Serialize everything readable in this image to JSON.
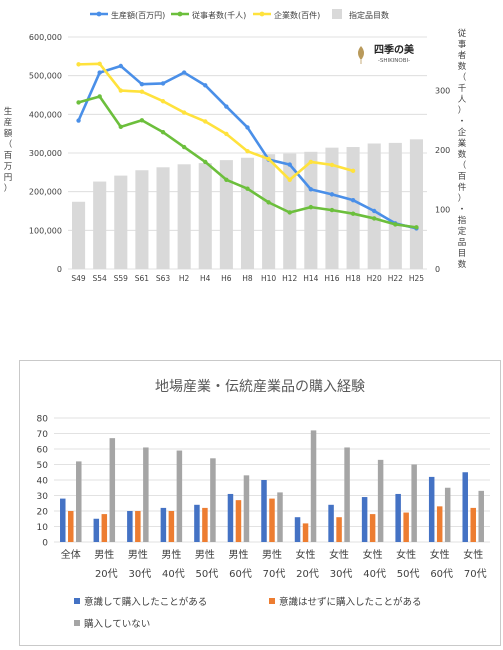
{
  "colors": {
    "production": "#4a8fe8",
    "workers": "#6cbf3c",
    "companies": "#ffe23c",
    "designated": "#d9d9d9",
    "c2_aware": "#4472c4",
    "c2_unaware": "#ed7d31",
    "c2_never": "#a5a5a5",
    "grid": "#d9d9d9",
    "axis_text": "#404040"
  },
  "logo": {
    "icon": "leaf-logo-icon",
    "kanji": "四季の美",
    "roman": "-SHIKINOBI-"
  },
  "chart_data": [
    {
      "type": "bar+line",
      "title": "",
      "categories": [
        "S49",
        "S54",
        "S59",
        "S61",
        "S63",
        "H2",
        "H4",
        "H6",
        "H8",
        "H10",
        "H12",
        "H14",
        "H16",
        "H18",
        "H20",
        "H22",
        "H25"
      ],
      "ylabel_left": "生産額（百万円）",
      "ylabel_right": "従事者数（千人）・企業数（百件）・指定品目数",
      "left_ticks": [
        "0",
        "100,000",
        "200,000",
        "300,000",
        "400,000",
        "500,000",
        "600,000"
      ],
      "right_ticks": [
        "0",
        "100",
        "200",
        "300"
      ],
      "ylim_left": [
        0,
        600000
      ],
      "ylim_right": [
        0,
        390
      ],
      "grid": true,
      "legend_position": "top",
      "series": [
        {
          "name": "生産額(百万円)",
          "kind": "line",
          "axis": "left",
          "color_key": "production",
          "values": [
            384000,
            508000,
            525000,
            478000,
            480000,
            508000,
            475000,
            420000,
            366000,
            283000,
            270000,
            206000,
            193000,
            178000,
            150000,
            118000,
            105000
          ]
        },
        {
          "name": "従事者数(千人)",
          "kind": "line",
          "axis": "right",
          "color_key": "workers",
          "values": [
            280,
            290,
            239,
            250,
            230,
            205,
            180,
            150,
            135,
            112,
            95,
            104,
            99,
            93,
            85,
            75,
            70
          ]
        },
        {
          "name": "企業数(百件)",
          "kind": "line",
          "axis": "right",
          "color_key": "companies",
          "values": [
            344,
            345,
            300,
            298,
            282,
            263,
            248,
            227,
            198,
            185,
            150,
            180,
            175,
            165,
            null,
            null,
            null
          ]
        },
        {
          "name": "指定品目数",
          "kind": "bar",
          "axis": "right",
          "color_key": "designated",
          "values": [
            113,
            147,
            157,
            166,
            171,
            176,
            178,
            183,
            187,
            193,
            194,
            197,
            204,
            205,
            211,
            212,
            218
          ]
        }
      ]
    },
    {
      "type": "bar",
      "title": "地場産業・伝統産業品の購入経験",
      "categories": [
        [
          "全体",
          ""
        ],
        [
          "男性",
          "20代"
        ],
        [
          "男性",
          "30代"
        ],
        [
          "男性",
          "40代"
        ],
        [
          "男性",
          "50代"
        ],
        [
          "男性",
          "60代"
        ],
        [
          "男性",
          "70代"
        ],
        [
          "女性",
          "20代"
        ],
        [
          "女性",
          "30代"
        ],
        [
          "女性",
          "40代"
        ],
        [
          "女性",
          "50代"
        ],
        [
          "女性",
          "60代"
        ],
        [
          "女性",
          "70代"
        ]
      ],
      "ylim": [
        0,
        80
      ],
      "yticks": [
        "0",
        "10",
        "20",
        "30",
        "40",
        "50",
        "60",
        "70",
        "80"
      ],
      "grid": true,
      "legend_position": "bottom",
      "series": [
        {
          "name": "意識して購入したことがある",
          "color_key": "c2_aware",
          "values": [
            28,
            15,
            20,
            22,
            24,
            31,
            40,
            16,
            24,
            29,
            31,
            42,
            45
          ]
        },
        {
          "name": "意識はせずに購入したことがある",
          "color_key": "c2_unaware",
          "values": [
            20,
            18,
            20,
            20,
            22,
            27,
            28,
            12,
            16,
            18,
            19,
            23,
            22
          ]
        },
        {
          "name": "購入していない",
          "color_key": "c2_never",
          "values": [
            52,
            67,
            61,
            59,
            54,
            43,
            32,
            72,
            61,
            53,
            50,
            35,
            33
          ]
        }
      ]
    }
  ]
}
